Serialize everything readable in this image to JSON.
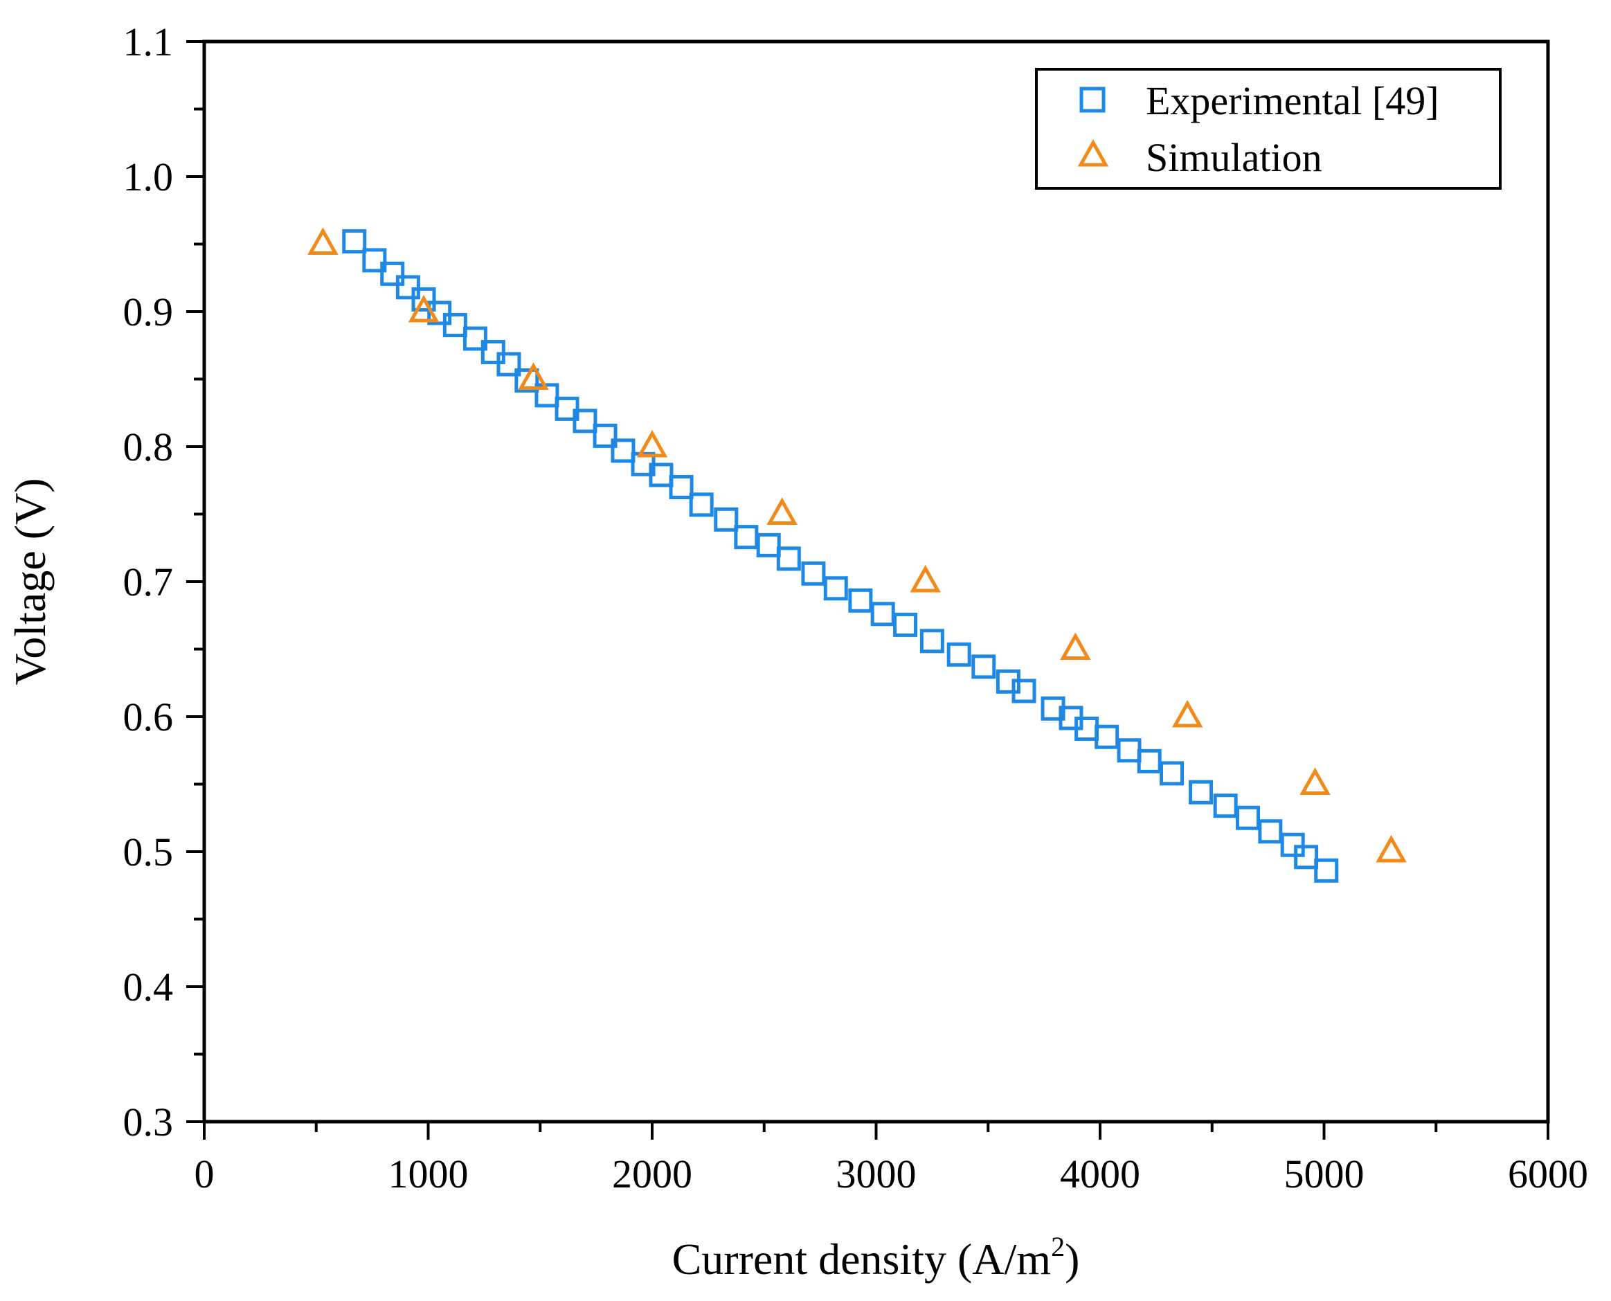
{
  "chart_data": {
    "type": "scatter",
    "title": "",
    "xlabel": "Current density (A/m",
    "xlabel_sup": "2",
    "xlabel_close": ")",
    "ylabel": "Voltage (V)",
    "xlim": [
      0,
      6000
    ],
    "ylim": [
      0.3,
      1.1
    ],
    "xticks": [
      0,
      1000,
      2000,
      3000,
      4000,
      5000,
      6000
    ],
    "xtick_labels": [
      "0",
      "1000",
      "2000",
      "3000",
      "4000",
      "5000",
      "6000"
    ],
    "yticks": [
      0.3,
      0.4,
      0.5,
      0.6,
      0.7,
      0.8,
      0.9,
      1.0,
      1.1
    ],
    "ytick_labels": [
      "0.3",
      "0.4",
      "0.5",
      "0.6",
      "0.7",
      "0.8",
      "0.9",
      "1.0",
      "1.1"
    ],
    "grid": false,
    "legend_position": "top-right",
    "series": [
      {
        "name": "Experimental [49]",
        "marker": "square-open",
        "color": "#1e88e5",
        "x": [
          670,
          760,
          840,
          910,
          980,
          1050,
          1120,
          1210,
          1290,
          1360,
          1440,
          1530,
          1620,
          1700,
          1790,
          1870,
          1960,
          2040,
          2130,
          2220,
          2330,
          2420,
          2520,
          2610,
          2720,
          2820,
          2930,
          3030,
          3130,
          3250,
          3370,
          3480,
          3590,
          3660,
          3790,
          3870,
          3940,
          4030,
          4130,
          4220,
          4320,
          4450,
          4560,
          4660,
          4760,
          4860,
          4920,
          5010
        ],
        "y": [
          0.952,
          0.938,
          0.928,
          0.918,
          0.909,
          0.899,
          0.89,
          0.88,
          0.87,
          0.861,
          0.849,
          0.838,
          0.828,
          0.819,
          0.808,
          0.797,
          0.787,
          0.779,
          0.77,
          0.757,
          0.746,
          0.733,
          0.727,
          0.717,
          0.706,
          0.695,
          0.686,
          0.676,
          0.668,
          0.656,
          0.646,
          0.637,
          0.626,
          0.619,
          0.606,
          0.599,
          0.591,
          0.585,
          0.575,
          0.567,
          0.558,
          0.544,
          0.534,
          0.525,
          0.515,
          0.505,
          0.496,
          0.486
        ]
      },
      {
        "name": "Simulation",
        "marker": "triangle-open",
        "color": "#f28a1a",
        "x": [
          530,
          980,
          1470,
          2000,
          2580,
          3220,
          3890,
          4390,
          4960,
          5300
        ],
        "y": [
          0.95,
          0.9,
          0.85,
          0.8,
          0.75,
          0.7,
          0.65,
          0.6,
          0.55,
          0.5
        ]
      }
    ]
  }
}
